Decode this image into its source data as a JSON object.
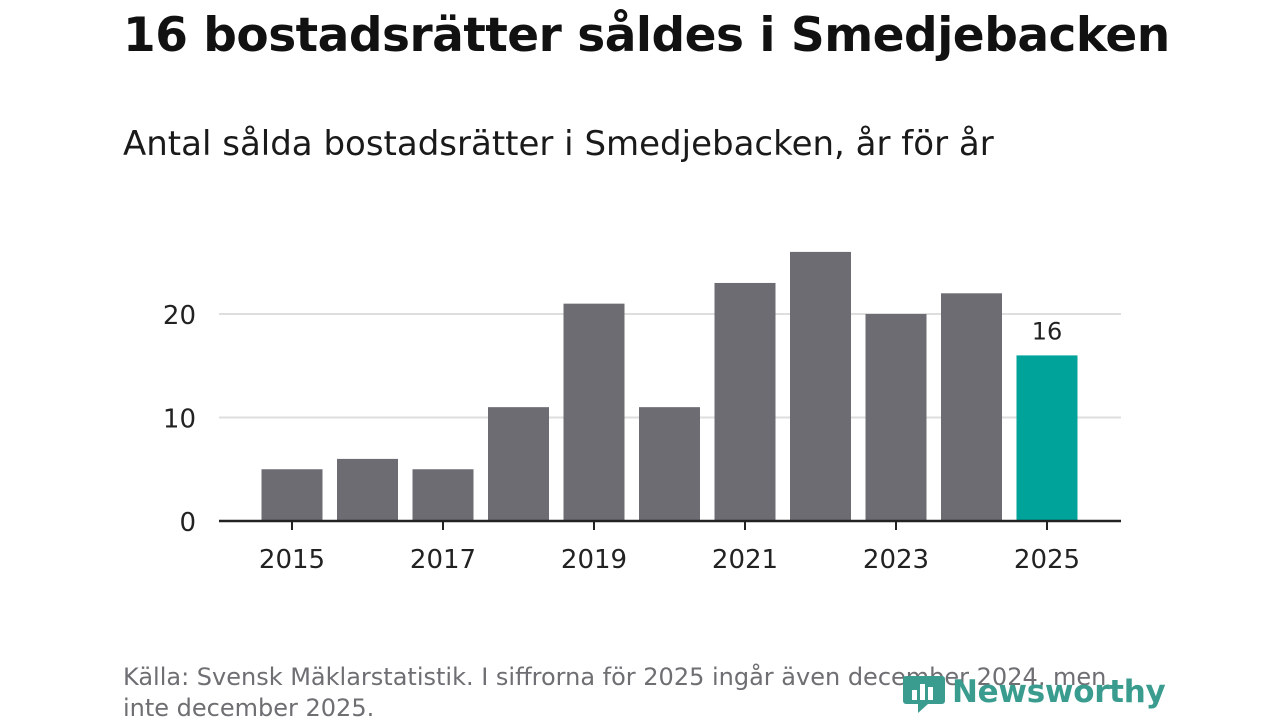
{
  "header": {
    "title": "16 bostadsrätter såldes i Smedjebacken"
  },
  "chart_data": {
    "type": "bar",
    "title": "16 bostadsrätter såldes i Smedjebacken",
    "subtitle": "Antal sålda bostadsrätter i Smedjebacken, år för år",
    "categories": [
      "2015",
      "2016",
      "2017",
      "2018",
      "2019",
      "2020",
      "2021",
      "2022",
      "2023",
      "2024",
      "2025"
    ],
    "values": [
      5,
      6,
      5,
      11,
      21,
      11,
      23,
      26,
      20,
      22,
      16
    ],
    "x_tick_labels": [
      "2015",
      "2017",
      "2019",
      "2021",
      "2023",
      "2025"
    ],
    "y_ticks": [
      0,
      10,
      20
    ],
    "ylim": [
      0,
      27
    ],
    "xlabel": "",
    "ylabel": "",
    "grid": true,
    "highlight": {
      "category": "2025",
      "label": "16"
    },
    "colors": {
      "bar": "#6d6c73",
      "highlight": "#00a39a",
      "grid": "#dedede",
      "axis": "#222222"
    }
  },
  "footer": {
    "source": "Källa: Svensk Mäklarstatistik. I siffrorna för 2025 ingår även december 2024, men inte december 2025.",
    "brand": "Newsworthy",
    "brand_icon": "newsworthy-logo-icon",
    "brand_color": "#3a9c8e"
  }
}
